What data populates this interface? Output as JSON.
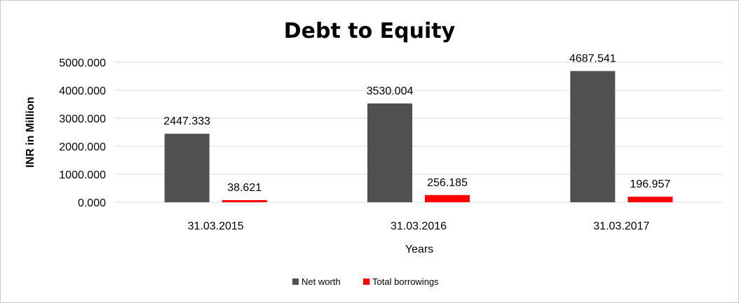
{
  "chart_data": {
    "type": "bar",
    "title": "Debt to Equity",
    "xlabel": "Years",
    "ylabel": "INR in Million",
    "categories": [
      "31.03.2015",
      "31.03.2016",
      "31.03.2017"
    ],
    "series": [
      {
        "name": "Net worth",
        "color": "#505050",
        "values": [
          2447.333,
          3530.004,
          4687.541
        ],
        "labels": [
          "2447.333",
          "3530.004",
          "4687.541"
        ]
      },
      {
        "name": "Total borrowings",
        "color": "#ff0000",
        "values": [
          38.621,
          256.185,
          196.957
        ],
        "labels": [
          "38.621",
          "256.185",
          "196.957"
        ]
      }
    ],
    "ylim": [
      0,
      5000
    ],
    "yticks": [
      "0.000",
      "1000.000",
      "2000.000",
      "3000.000",
      "4000.000",
      "5000.000"
    ],
    "grid": true,
    "legend_position": "bottom"
  }
}
